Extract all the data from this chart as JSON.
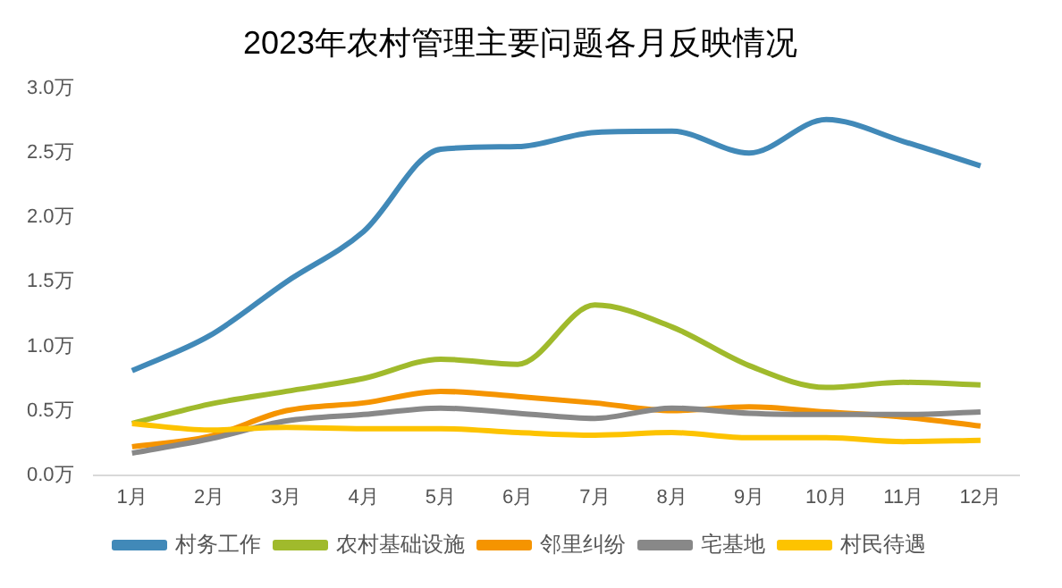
{
  "chart_data": {
    "type": "line",
    "title": "2023年农村管理主要问题各月反映情况",
    "categories": [
      "1月",
      "2月",
      "3月",
      "4月",
      "5月",
      "6月",
      "7月",
      "8月",
      "9月",
      "10月",
      "11月",
      "12月"
    ],
    "series": [
      {
        "name": "村务工作",
        "color": "#4189b8",
        "values": [
          0.81,
          1.08,
          1.5,
          1.89,
          2.53,
          2.55,
          2.66,
          2.67,
          2.5,
          2.76,
          2.59,
          2.4
        ]
      },
      {
        "name": "农村基础设施",
        "color": "#a0ba2c",
        "values": [
          0.4,
          0.55,
          0.65,
          0.75,
          0.9,
          0.86,
          1.32,
          1.15,
          0.85,
          0.68,
          0.72,
          0.7
        ]
      },
      {
        "name": "邻里纠纷",
        "color": "#f59400",
        "values": [
          0.22,
          0.3,
          0.5,
          0.56,
          0.65,
          0.61,
          0.56,
          0.5,
          0.53,
          0.49,
          0.45,
          0.38
        ]
      },
      {
        "name": "宅基地",
        "color": "#888888",
        "values": [
          0.17,
          0.28,
          0.42,
          0.47,
          0.52,
          0.48,
          0.44,
          0.52,
          0.48,
          0.47,
          0.47,
          0.49
        ]
      },
      {
        "name": "村民待遇",
        "color": "#fdc300",
        "values": [
          0.4,
          0.35,
          0.37,
          0.36,
          0.36,
          0.33,
          0.31,
          0.33,
          0.29,
          0.29,
          0.26,
          0.27
        ]
      }
    ],
    "ylim": [
      0,
      3
    ],
    "yticks": [
      {
        "value": 0,
        "label": "0.0万"
      },
      {
        "value": 0.5,
        "label": "0.5万"
      },
      {
        "value": 1,
        "label": "1.0万"
      },
      {
        "value": 1.5,
        "label": "1.5万"
      },
      {
        "value": 2,
        "label": "2.0万"
      },
      {
        "value": 2.5,
        "label": "2.5万"
      },
      {
        "value": 3,
        "label": "3.0万"
      }
    ],
    "grid": false,
    "legend": "bottom",
    "marker": "none",
    "line_style": "solid"
  }
}
